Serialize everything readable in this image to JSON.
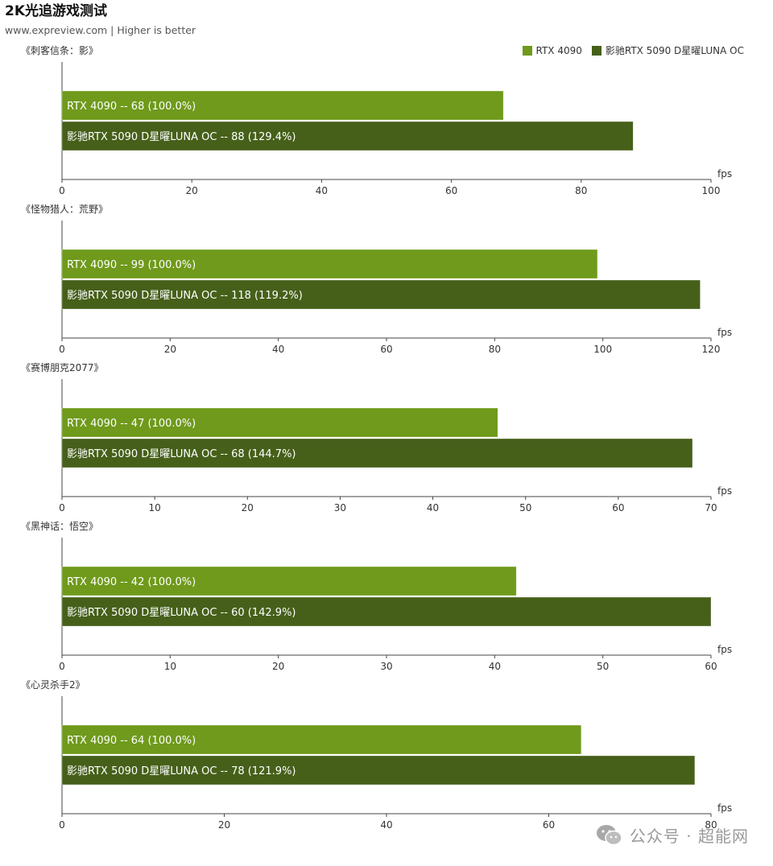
{
  "title": "2K光追游戏测试",
  "subtitle": "www.expreview.com | Higher is better",
  "colors": {
    "rtx4090": "#6f9a1b",
    "rtx5090": "#46601a",
    "axis": "#444444"
  },
  "legend": [
    {
      "label": "RTX 4090",
      "color": "#6f9a1b"
    },
    {
      "label": "影驰RTX 5090 D星曜LUNA OC",
      "color": "#46601a"
    }
  ],
  "watermark": {
    "text": "公众号 · 超能网",
    "icon": "wechat-icon"
  },
  "chart_data": [
    {
      "type": "bar",
      "title": "《刺客信条：影》",
      "unit": "fps",
      "xlim": [
        0,
        100
      ],
      "ticks": [
        0,
        20,
        40,
        60,
        80,
        100
      ],
      "series": [
        {
          "name": "RTX 4090",
          "value": 68,
          "percent": "100.0%",
          "label": "RTX 4090  --  68  (100.0%)"
        },
        {
          "name": "影驰RTX 5090 D星曜LUNA OC",
          "value": 88,
          "percent": "129.4%",
          "label": "影驰RTX 5090 D星曜LUNA OC  --  88  (129.4%)"
        }
      ]
    },
    {
      "type": "bar",
      "title": "《怪物猎人：荒野》",
      "unit": "fps",
      "xlim": [
        0,
        120
      ],
      "ticks": [
        0,
        20,
        40,
        60,
        80,
        100,
        120
      ],
      "series": [
        {
          "name": "RTX 4090",
          "value": 99,
          "percent": "100.0%",
          "label": "RTX 4090  --  99  (100.0%)"
        },
        {
          "name": "影驰RTX 5090 D星曜LUNA OC",
          "value": 118,
          "percent": "119.2%",
          "label": "影驰RTX 5090 D星曜LUNA OC  --  118  (119.2%)"
        }
      ]
    },
    {
      "type": "bar",
      "title": "《赛博朋克2077》",
      "unit": "fps",
      "xlim": [
        0,
        70
      ],
      "ticks": [
        0,
        10,
        20,
        30,
        40,
        50,
        60,
        70
      ],
      "series": [
        {
          "name": "RTX 4090",
          "value": 47,
          "percent": "100.0%",
          "label": "RTX 4090  --  47  (100.0%)"
        },
        {
          "name": "影驰RTX 5090 D星曜LUNA OC",
          "value": 68,
          "percent": "144.7%",
          "label": "影驰RTX 5090 D星曜LUNA OC  --  68  (144.7%)"
        }
      ]
    },
    {
      "type": "bar",
      "title": "《黑神话：悟空》",
      "unit": "fps",
      "xlim": [
        0,
        60
      ],
      "ticks": [
        0,
        10,
        20,
        30,
        40,
        50,
        60
      ],
      "series": [
        {
          "name": "RTX 4090",
          "value": 42,
          "percent": "100.0%",
          "label": "RTX 4090  --  42  (100.0%)"
        },
        {
          "name": "影驰RTX 5090 D星曜LUNA OC",
          "value": 60,
          "percent": "142.9%",
          "label": "影驰RTX 5090 D星曜LUNA OC  --  60  (142.9%)"
        }
      ]
    },
    {
      "type": "bar",
      "title": "《心灵杀手2》",
      "unit": "fps",
      "xlim": [
        0,
        80
      ],
      "ticks": [
        0,
        20,
        40,
        60,
        80
      ],
      "series": [
        {
          "name": "RTX 4090",
          "value": 64,
          "percent": "100.0%",
          "label": "RTX 4090  --  64  (100.0%)"
        },
        {
          "name": "影驰RTX 5090 D星曜LUNA OC",
          "value": 78,
          "percent": "121.9%",
          "label": "影驰RTX 5090 D星曜LUNA OC  --  78  (121.9%)"
        }
      ]
    }
  ]
}
